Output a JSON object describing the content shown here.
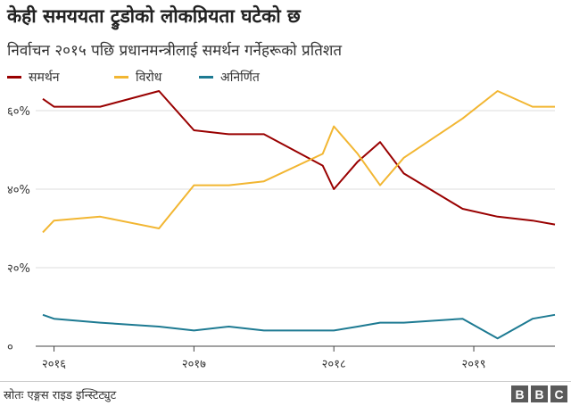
{
  "title": "केही समययता ट्रुडोको लोकप्रियता घटेको छ",
  "subtitle": "निर्वाचन २०१५ पछि प्रधानमन्त्रीलाई समर्थन गर्नेहरूको प्रतिशत",
  "source": "स्रोतः एङ्गस राइड इन्स्टिट्युट",
  "brand": [
    "B",
    "B",
    "C"
  ],
  "chart_data": {
    "type": "line",
    "title": "केही समययता ट्रुडोको लोकप्रियता घटेको छ",
    "subtitle": "निर्वाचन २०१५ पछि प्रधानमन्त्रीलाई समर्थन गर्नेहरूको प्रतिशत",
    "xlabel": "",
    "ylabel": "",
    "x": [
      2015.92,
      2016.0,
      2016.33,
      2016.75,
      2017.0,
      2017.25,
      2017.5,
      2017.92,
      2018.0,
      2018.17,
      2018.33,
      2018.5,
      2018.92,
      2019.17,
      2019.42,
      2019.58
    ],
    "x_ticks": [
      2016,
      2017,
      2018,
      2019
    ],
    "x_tick_labels": [
      "२०१६",
      "२०१७",
      "२०१८",
      "२०१९"
    ],
    "ylim": [
      0,
      65
    ],
    "y_ticks": [
      0,
      20,
      40,
      60
    ],
    "y_tick_labels": [
      "०",
      "२०%",
      "४०%",
      "६०%"
    ],
    "grid": "horizontal",
    "legend_position": "top-left",
    "series": [
      {
        "name": "समर्थन",
        "color": "#990000",
        "values": [
          63,
          61,
          61,
          65,
          55,
          54,
          54,
          46,
          40,
          47,
          52,
          44,
          35,
          33,
          32,
          31
        ]
      },
      {
        "name": "विरोध",
        "color": "#f2b632",
        "values": [
          29,
          32,
          33,
          30,
          41,
          41,
          42,
          49,
          56,
          49,
          41,
          48,
          58,
          65,
          61,
          61
        ]
      },
      {
        "name": "अनिर्णित",
        "color": "#1d7a92",
        "values": [
          8,
          7,
          6,
          5,
          4,
          5,
          4,
          4,
          4,
          5,
          6,
          6,
          7,
          2,
          7,
          8
        ]
      }
    ]
  }
}
